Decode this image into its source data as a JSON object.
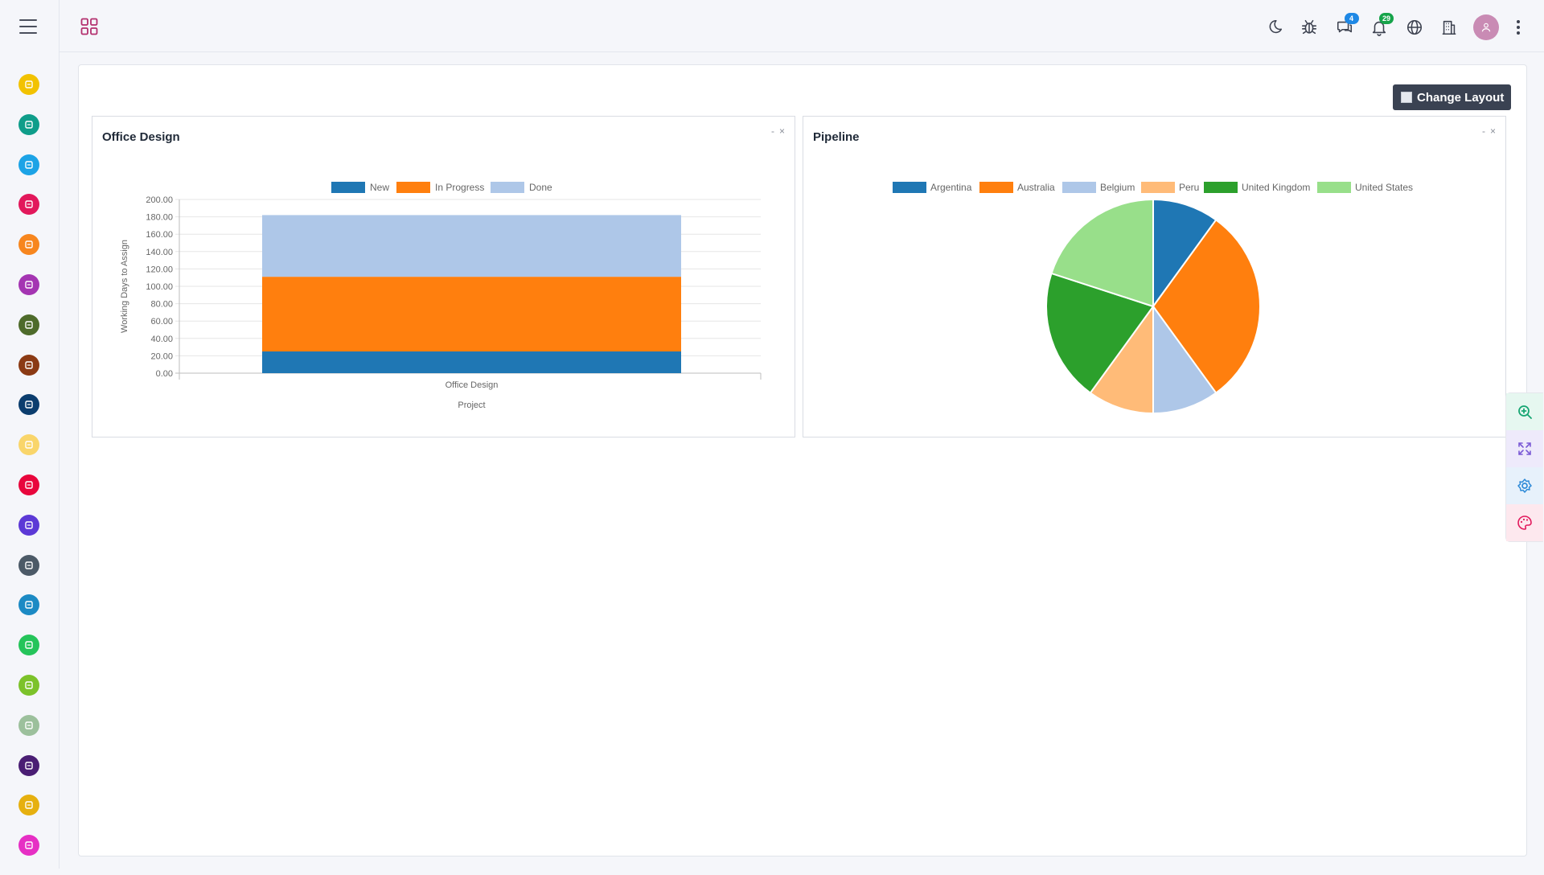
{
  "sidebar": {
    "menu_icon": "hamburger-menu-icon",
    "items": [
      {
        "icon": "inbox-icon",
        "color": "#f2c200"
      },
      {
        "icon": "calendar-check-icon",
        "color": "#0f9d8a"
      },
      {
        "icon": "clipboard-icon",
        "color": "#1ca3e6"
      },
      {
        "icon": "handshake-icon",
        "color": "#e2185b"
      },
      {
        "icon": "cart-icon",
        "color": "#f7861e"
      },
      {
        "icon": "calendar-icon",
        "color": "#a435b2"
      },
      {
        "icon": "invoice-icon",
        "color": "#4e6b2b"
      },
      {
        "icon": "rocket-icon",
        "color": "#8b3a14"
      },
      {
        "icon": "list-icon",
        "color": "#0b3d6e"
      },
      {
        "icon": "ticket-icon",
        "color": "#f9d56a"
      },
      {
        "icon": "graduation-icon",
        "color": "#e8063c"
      },
      {
        "icon": "wrench-icon",
        "color": "#5c39d6"
      },
      {
        "icon": "briefcase-icon",
        "color": "#4c5a67"
      },
      {
        "icon": "tools-icon",
        "color": "#1c8ac4"
      },
      {
        "icon": "users-icon",
        "color": "#25c45a"
      },
      {
        "icon": "car-icon",
        "color": "#7cc22a"
      },
      {
        "icon": "hourglass-icon",
        "color": "#9cc09c"
      },
      {
        "icon": "piggy-bank-icon",
        "color": "#4a1e74"
      },
      {
        "icon": "utensils-icon",
        "color": "#e6b00f"
      },
      {
        "icon": "chat-icon",
        "color": "#e62fc4"
      }
    ]
  },
  "topbar": {
    "apps_icon": "apps-grid-icon",
    "icons": [
      {
        "name": "moon-icon"
      },
      {
        "name": "bug-icon"
      },
      {
        "name": "messages-icon",
        "badge": "4",
        "badge_color": "blue"
      },
      {
        "name": "bell-icon",
        "badge": "29",
        "badge_color": "green"
      },
      {
        "name": "globe-icon"
      },
      {
        "name": "building-icon"
      }
    ],
    "avatar_icon": "user-avatar-icon",
    "more_icon": "kebab-menu-icon"
  },
  "toolbar": {
    "change_layout_label": "Change Layout"
  },
  "widgets": {
    "office_design": {
      "title": "Office Design",
      "minimize": "-",
      "close": "×"
    },
    "pipeline": {
      "title": "Pipeline",
      "minimize": "-",
      "close": "×"
    }
  },
  "chart_data": [
    {
      "type": "bar",
      "stacked": true,
      "categories": [
        "Office Design"
      ],
      "series": [
        {
          "name": "New",
          "values": [
            25
          ],
          "color": "#1f77b4"
        },
        {
          "name": "In Progress",
          "values": [
            86
          ],
          "color": "#ff7f0e"
        },
        {
          "name": "Done",
          "values": [
            71
          ],
          "color": "#aec7e8"
        }
      ],
      "xlabel": "Project",
      "ylabel": "Working Days to Assign",
      "ylim": [
        0,
        200
      ],
      "yticks": [
        "200.00",
        "180.00",
        "160.00",
        "140.00",
        "120.00",
        "100.00",
        "80.00",
        "60.00",
        "40.00",
        "20.00",
        "0.00"
      ],
      "grid": true,
      "legend": "top"
    },
    {
      "type": "pie",
      "series": [
        {
          "name": "Argentina",
          "value": 10,
          "color": "#1f77b4"
        },
        {
          "name": "Australia",
          "value": 30,
          "color": "#ff7f0e"
        },
        {
          "name": "Belgium",
          "value": 10,
          "color": "#aec7e8"
        },
        {
          "name": "Peru",
          "value": 10,
          "color": "#ffbb78"
        },
        {
          "name": "United Kingdom",
          "value": 20,
          "color": "#2ca02c"
        },
        {
          "name": "United States",
          "value": 20,
          "color": "#98df8a"
        }
      ],
      "legend": "top"
    }
  ],
  "right_tools": [
    {
      "icon": "zoom-in-icon",
      "color": "#17a673",
      "bg": "#e6f7f0"
    },
    {
      "icon": "expand-icon",
      "color": "#7b5bd6",
      "bg": "#eeeafb"
    },
    {
      "icon": "settings-icon",
      "color": "#2f8bd8",
      "bg": "#e7f1fb"
    },
    {
      "icon": "palette-icon",
      "color": "#e2185b",
      "bg": "#fde8ee"
    }
  ]
}
